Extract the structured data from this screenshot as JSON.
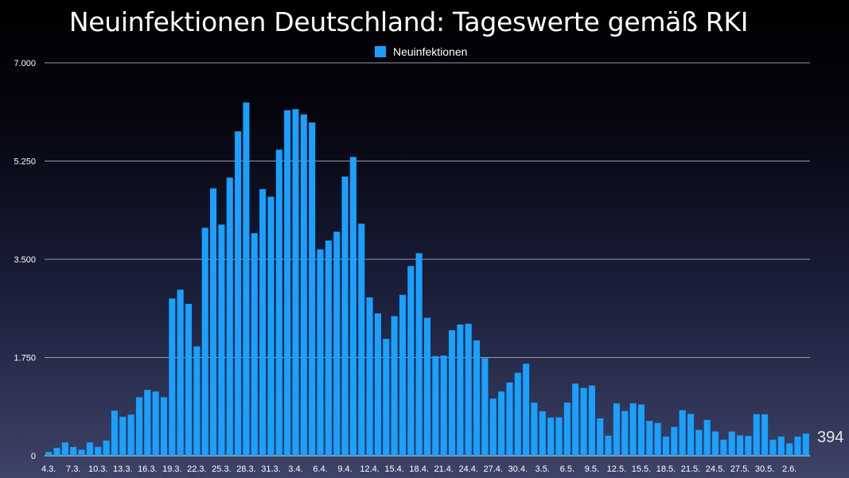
{
  "chart_data": {
    "type": "bar",
    "title": "Neuinfektionen Deutschland: Tageswerte gemäß RKI",
    "legend": "Neuinfektionen",
    "legend_position": "top-center",
    "ylim": [
      0,
      7000
    ],
    "yticks": [
      "0",
      "1.750",
      "3.500",
      "5.250",
      "7.000"
    ],
    "ytick_values": [
      0,
      1750,
      3500,
      5250,
      7000
    ],
    "xtick_labels": [
      "4.3.",
      "7.3.",
      "10.3.",
      "13.3.",
      "16.3.",
      "19.3.",
      "22.3.",
      "25.3.",
      "28.3.",
      "31.3.",
      "3.4.",
      "6.4.",
      "9.4.",
      "12.4.",
      "15.4.",
      "18.4.",
      "21.4.",
      "24.4.",
      "27.4.",
      "30.4.",
      "3.5.",
      "6.5.",
      "9.5.",
      "12.5.",
      "15.5.",
      "18.5.",
      "21.5.",
      "24.5.",
      "27.5.",
      "30.5.",
      "2.6."
    ],
    "xtick_every": 3,
    "bar_color": "#1aa0ff",
    "grid": true,
    "final_value_label": "394",
    "series": [
      {
        "name": "Neuinfektionen",
        "values": [
          66,
          138,
          239,
          156,
          107,
          237,
          157,
          271,
          802,
          693,
          733,
          1043,
          1174,
          1144,
          1042,
          2801,
          2958,
          2705,
          1948,
          4062,
          4764,
          4118,
          4954,
          5780,
          6294,
          3965,
          4751,
          4615,
          5453,
          6156,
          6174,
          6082,
          5936,
          3677,
          3834,
          3990,
          4974,
          5323,
          4133,
          2821,
          2537,
          2082,
          2486,
          2866,
          3380,
          3609,
          2458,
          1775,
          1785,
          2237,
          2337,
          2352,
          2055,
          1737,
          1018,
          1144,
          1304,
          1478,
          1639,
          945,
          793,
          679,
          685,
          947,
          1284,
          1209,
          1251,
          667,
          357,
          933,
          798,
          933,
          913,
          620,
          583,
          342,
          513,
          812,
          745,
          460,
          638,
          432,
          286,
          431,
          362,
          352,
          741,
          738,
          286,
          342,
          221,
          342,
          394
        ]
      }
    ]
  }
}
